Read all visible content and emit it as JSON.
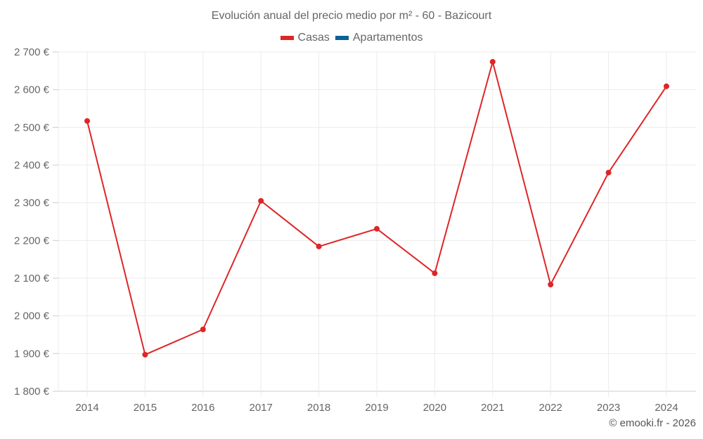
{
  "chart_data": {
    "type": "line",
    "title": "Evolución anual del precio medio por m² - 60 - Bazicourt",
    "xlabel": "",
    "ylabel": "",
    "categories": [
      "2014",
      "2015",
      "2016",
      "2017",
      "2018",
      "2019",
      "2020",
      "2021",
      "2022",
      "2023",
      "2024"
    ],
    "series": [
      {
        "name": "Casas",
        "color": "#dd2627",
        "values": [
          2517,
          1897,
          1964,
          2305,
          2184,
          2231,
          2113,
          2674,
          2083,
          2380,
          2609
        ]
      },
      {
        "name": "Apartamentos",
        "color": "#0b6198",
        "values": []
      }
    ],
    "ylim": [
      1800,
      2700
    ],
    "yticks": [
      1800,
      1900,
      2000,
      2100,
      2200,
      2300,
      2400,
      2500,
      2600,
      2700
    ],
    "ytick_labels": [
      "1 800 €",
      "1 900 €",
      "2 000 €",
      "2 100 €",
      "2 200 €",
      "2 300 €",
      "2 400 €",
      "2 500 €",
      "2 600 €",
      "2 700 €"
    ],
    "grid": true,
    "legend_position": "top-center"
  },
  "title": "Evolución anual del precio medio por m² - 60 - Bazicourt",
  "legend": [
    {
      "label": "Casas",
      "color": "#dd2627"
    },
    {
      "label": "Apartamentos",
      "color": "#0b6198"
    }
  ],
  "credit": "© emooki.fr - 2026"
}
